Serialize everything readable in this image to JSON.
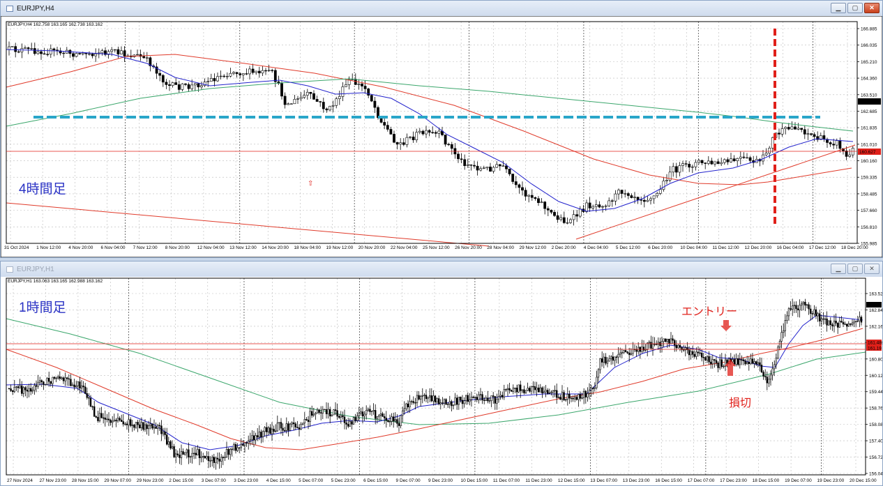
{
  "window_h4": {
    "title": "EURJPY,H4",
    "header": "EURJPY,H4  162.758 163.165 162.738 163.162",
    "annotation": "4時間足",
    "price_ticks": [
      "166.885",
      "166.035",
      "165.210",
      "164.360",
      "163.510",
      "162.685",
      "161.835",
      "161.010",
      "160.160",
      "159.335",
      "158.485",
      "157.660",
      "156.810",
      "155.985"
    ],
    "current_price": "163.162",
    "line_price": "160.627",
    "time_labels": [
      "31 Oct 2024",
      "1 Nov 12:00",
      "4 Nov 20:00",
      "6 Nov 04:00",
      "7 Nov 12:00",
      "8 Nov 20:00",
      "12 Nov 04:00",
      "13 Nov 12:00",
      "14 Nov 20:00",
      "18 Nov 04:00",
      "19 Nov 12:00",
      "20 Nov 20:00",
      "22 Nov 04:00",
      "25 Nov 12:00",
      "26 Nov 20:00",
      "28 Nov 04:00",
      "29 Nov 12:00",
      "2 Dec 20:00",
      "4 Dec 04:00",
      "5 Dec 12:00",
      "6 Dec 20:00",
      "10 Dec 04:00",
      "11 Dec 12:00",
      "12 Dec 20:00",
      "16 Dec 04:00",
      "17 Dec 12:00",
      "18 Dec 20:00"
    ]
  },
  "window_h1": {
    "title": "EURJPY,H1",
    "header": "EURJPY,H1  163.063 163.165 162.988 163.162",
    "annotation": "1時間足",
    "entry_label": "エントリー",
    "stop_label": "損切",
    "price_ticks": [
      "163.52",
      "162.84",
      "162.16",
      "161.48",
      "160.80",
      "160.12",
      "159.44",
      "158.76",
      "158.08",
      "157.40",
      "156.72",
      "156.04"
    ],
    "current_price": "163.16",
    "line_price_1": "161.48",
    "line_price_2": "161.19",
    "time_labels": [
      "27 Nov 2024",
      "27 Nov 23:00",
      "28 Nov 15:00",
      "29 Nov 07:00",
      "29 Nov 23:00",
      "2 Dec 15:00",
      "3 Dec 07:00",
      "3 Dec 23:00",
      "4 Dec 15:00",
      "5 Dec 07:00",
      "5 Dec 23:00",
      "6 Dec 15:00",
      "9 Dec 07:00",
      "9 Dec 23:00",
      "10 Dec 15:00",
      "11 Dec 07:00",
      "11 Dec 23:00",
      "12 Dec 15:00",
      "13 Dec 07:00",
      "13 Dec 23:00",
      "16 Dec 15:00",
      "17 Dec 07:00",
      "17 Dec 23:00",
      "18 Dec 15:00",
      "19 Dec 07:00",
      "19 Dec 23:00",
      "20 Dec 15:00"
    ]
  },
  "colors": {
    "bull": "#ffffff",
    "bear": "#000000",
    "ma_fast": "#2222cc",
    "ma_mid": "#e03a2a",
    "ma_slow": "#3aa66b",
    "support": "#2aa6c9",
    "marker": "#e0201a",
    "annotation": "#2a32c4",
    "hline": "#e0201a"
  },
  "icons": {
    "chart_window": "chart-window-icon",
    "minimize": "minimize-icon",
    "maximize": "maximize-icon",
    "close": "close-icon",
    "arrow_down": "arrow-down-icon",
    "arrow_up": "arrow-up-icon"
  }
}
